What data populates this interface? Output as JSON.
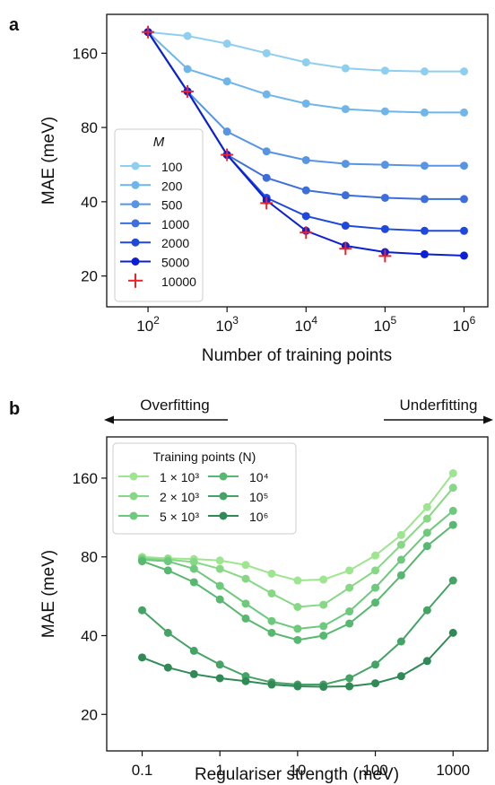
{
  "figure": {
    "panel_a_label": "a",
    "panel_b_label": "b"
  },
  "chart_data": [
    {
      "type": "line",
      "panel": "a",
      "xlabel": "Number of training points",
      "ylabel": "MAE (meV)",
      "xscale": "log",
      "yscale": "log",
      "xlim": [
        30,
        2000000
      ],
      "ylim": [
        15,
        230
      ],
      "x_ticks": [
        {
          "v": 100,
          "base": "10",
          "exp": "2"
        },
        {
          "v": 1000,
          "base": "10",
          "exp": "3"
        },
        {
          "v": 10000,
          "base": "10",
          "exp": "4"
        },
        {
          "v": 100000,
          "base": "10",
          "exp": "5"
        },
        {
          "v": 1000000,
          "base": "10",
          "exp": "6"
        }
      ],
      "y_ticks": [
        {
          "v": 20,
          "label": "20"
        },
        {
          "v": 40,
          "label": "40"
        },
        {
          "v": 80,
          "label": "80"
        },
        {
          "v": 160,
          "label": "160"
        }
      ],
      "grid": false,
      "legend": {
        "title": "M",
        "placement": "bottom-left"
      },
      "series": [
        {
          "name": "100",
          "color": "#8ecff0",
          "marker": "circle",
          "x": [
            100,
            316,
            1000,
            3162,
            10000,
            31623,
            100000,
            316228,
            1000000
          ],
          "y": [
            195,
            188,
            175,
            160,
            147,
            139,
            136,
            135,
            135
          ]
        },
        {
          "name": "200",
          "color": "#6eb6ea",
          "marker": "circle",
          "x": [
            100,
            316,
            1000,
            3162,
            10000,
            31623,
            100000,
            316228,
            1000000
          ],
          "y": [
            195,
            138,
            123,
            109,
            100,
            95,
            93,
            92,
            92
          ]
        },
        {
          "name": "500",
          "color": "#5795e4",
          "marker": "circle",
          "x": [
            100,
            316,
            1000,
            3162,
            10000,
            31623,
            100000,
            316228,
            1000000
          ],
          "y": [
            195,
            112,
            77,
            64,
            59,
            57,
            56.5,
            56,
            56
          ]
        },
        {
          "name": "1000",
          "color": "#3d6fdc",
          "marker": "circle",
          "x": [
            100,
            316,
            1000,
            3162,
            10000,
            31623,
            100000,
            316228,
            1000000
          ],
          "y": [
            195,
            112,
            62,
            50,
            44.5,
            42.5,
            41.5,
            41,
            41
          ]
        },
        {
          "name": "2000",
          "color": "#1f49de",
          "marker": "circle",
          "x": [
            100,
            316,
            1000,
            3162,
            10000,
            31623,
            100000,
            316228,
            1000000
          ],
          "y": [
            195,
            112,
            62,
            41.5,
            35,
            32,
            31,
            30.5,
            30.5
          ]
        },
        {
          "name": "5000",
          "color": "#0a1fd6",
          "marker": "circle",
          "x": [
            100,
            316,
            1000,
            3162,
            10000,
            31623,
            100000,
            316228,
            1000000
          ],
          "y": [
            195,
            112,
            62,
            40.5,
            30.5,
            26.5,
            25,
            24.5,
            24.2
          ]
        },
        {
          "name": "10000",
          "color": "#e8232a",
          "marker": "plus",
          "x": [
            100,
            316,
            1000,
            3162,
            10000,
            31623,
            100000
          ],
          "y": [
            195,
            112,
            62,
            39.5,
            30,
            25.8,
            24.1
          ]
        }
      ]
    },
    {
      "type": "line",
      "panel": "b",
      "xlabel": "Regulariser strength (meV)",
      "ylabel": "MAE (meV)",
      "xscale": "log",
      "yscale": "log",
      "xlim": [
        0.035,
        2800
      ],
      "ylim": [
        14.5,
        230
      ],
      "x_ticks": [
        {
          "v": 0.1,
          "label": "0.1"
        },
        {
          "v": 1,
          "label": "1"
        },
        {
          "v": 10,
          "label": "10"
        },
        {
          "v": 100,
          "label": "100"
        },
        {
          "v": 1000,
          "label": "1000"
        }
      ],
      "y_ticks": [
        {
          "v": 20,
          "label": "20"
        },
        {
          "v": 40,
          "label": "40"
        },
        {
          "v": 80,
          "label": "80"
        },
        {
          "v": 160,
          "label": "160"
        }
      ],
      "grid": false,
      "legend": {
        "title": "Training points (N)",
        "placement": "top-left",
        "columns": 2
      },
      "annotations": {
        "left": "Overfitting",
        "right": "Underfitting"
      },
      "series": [
        {
          "name": "1 × 10³",
          "color": "#9ee58f",
          "marker": "circle",
          "x": [
            0.1,
            0.215,
            0.464,
            1,
            2.15,
            4.64,
            10,
            21.5,
            46.4,
            100,
            215,
            464,
            1000
          ],
          "y": [
            80,
            79,
            78.5,
            77.5,
            74.5,
            69,
            65,
            65.5,
            71,
            81,
            97,
            124,
            167
          ]
        },
        {
          "name": "2 × 10³",
          "color": "#86d884",
          "marker": "circle",
          "x": [
            0.1,
            0.215,
            0.464,
            1,
            2.15,
            4.64,
            10,
            21.5,
            46.4,
            100,
            215,
            464,
            1000
          ],
          "y": [
            79,
            78,
            76.5,
            72,
            66,
            58,
            51.5,
            52.5,
            61,
            71,
            89,
            112,
            147
          ]
        },
        {
          "name": "5 × 10³",
          "color": "#6dc97b",
          "marker": "circle",
          "x": [
            0.1,
            0.215,
            0.464,
            1,
            2.15,
            4.64,
            10,
            21.5,
            46.4,
            100,
            215,
            464,
            1000
          ],
          "y": [
            78,
            77,
            72,
            62,
            53,
            45.5,
            42.5,
            43.5,
            49.5,
            61,
            78,
            99,
            120
          ]
        },
        {
          "name": "10⁴",
          "color": "#57b870",
          "marker": "circle",
          "x": [
            0.1,
            0.215,
            0.464,
            1,
            2.15,
            4.64,
            10,
            21.5,
            46.4,
            100,
            215,
            464,
            1000
          ],
          "y": [
            77,
            71,
            64,
            55,
            46.5,
            41,
            38.5,
            40,
            44.5,
            53.5,
            68,
            88,
            106
          ]
        },
        {
          "name": "10⁵",
          "color": "#44a365",
          "marker": "circle",
          "x": [
            0.1,
            0.215,
            0.464,
            1,
            2.15,
            4.64,
            10,
            21.5,
            46.4,
            100,
            215,
            464,
            1000
          ],
          "y": [
            50,
            41,
            35,
            31,
            28,
            26.5,
            26,
            26,
            27.5,
            31,
            38,
            50,
            65
          ]
        },
        {
          "name": "10⁶",
          "color": "#2f8a56",
          "marker": "circle",
          "x": [
            0.1,
            0.215,
            0.464,
            1,
            2.15,
            4.64,
            10,
            21.5,
            46.4,
            100,
            215,
            464,
            1000
          ],
          "y": [
            33,
            30.2,
            28.5,
            27.5,
            26.8,
            26,
            25.6,
            25.5,
            25.6,
            26.3,
            28,
            32,
            41
          ]
        }
      ]
    }
  ]
}
